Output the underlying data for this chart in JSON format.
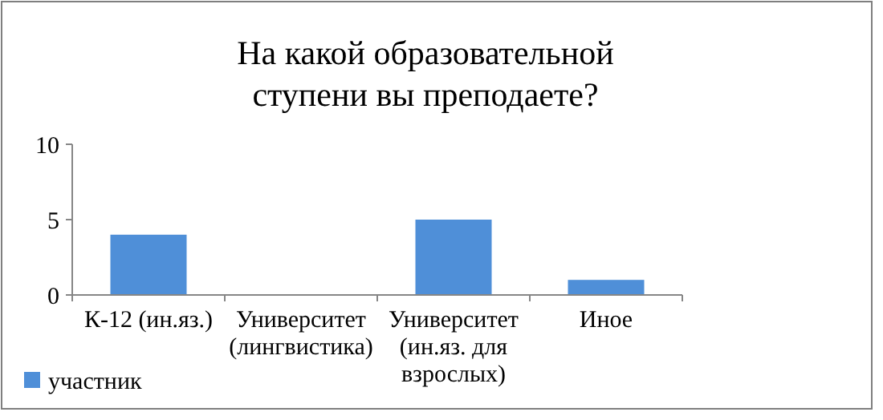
{
  "chart_data": {
    "type": "bar",
    "title": "На какой образовательной ступени вы преподаете?",
    "categories": [
      "К-12 (ин.яз.)",
      "Университет (лингвистика)",
      "Университет (ин.яз. для взрослых)",
      "Иное"
    ],
    "series": [
      {
        "name": "участник",
        "color": "#4f8fd8",
        "values": [
          4,
          0,
          5,
          1
        ]
      }
    ],
    "ylim": [
      0,
      10
    ],
    "yticks": [
      0,
      5,
      10
    ],
    "grid": false,
    "legend": "bottom left"
  }
}
